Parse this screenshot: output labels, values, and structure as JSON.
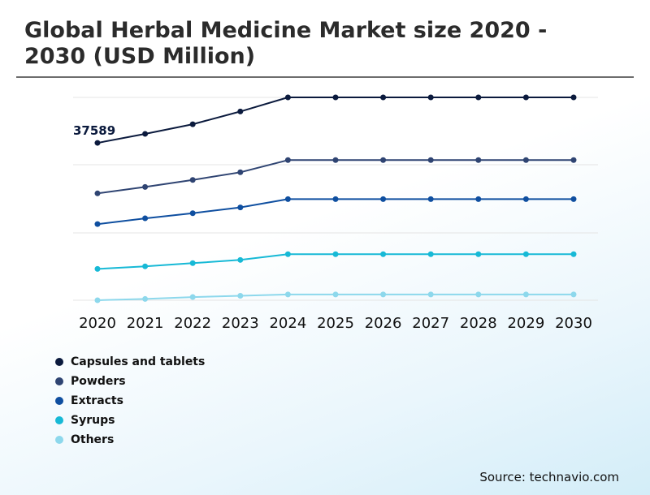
{
  "title": "Global Herbal Medicine Market size 2020 - 2030 (USD Million)",
  "source": "Source: technavio.com",
  "chart_data": {
    "type": "line",
    "x": [
      "2020",
      "2021",
      "2022",
      "2023",
      "2024",
      "2025",
      "2026",
      "2027",
      "2028",
      "2029",
      "2030"
    ],
    "series": [
      {
        "name": "Capsules and tablets",
        "color": "#0b1a3d",
        "values": [
          37589,
          39000,
          40500,
          42500,
          44700,
          44700,
          44700,
          44700,
          44700,
          44700,
          44700
        ]
      },
      {
        "name": "Powders",
        "color": "#2f4472",
        "values": [
          29700,
          30700,
          31800,
          33000,
          34900,
          34900,
          34900,
          34900,
          34900,
          34900,
          34900
        ]
      },
      {
        "name": "Extracts",
        "color": "#0f4fa0",
        "values": [
          24900,
          25800,
          26600,
          27500,
          28800,
          28800,
          28800,
          28800,
          28800,
          28800,
          28800
        ]
      },
      {
        "name": "Syrups",
        "color": "#17b9d6",
        "values": [
          17900,
          18300,
          18800,
          19300,
          20200,
          20200,
          20200,
          20200,
          20200,
          20200,
          20200
        ]
      },
      {
        "name": "Others",
        "color": "#8dd8ec",
        "values": [
          13000,
          13200,
          13500,
          13700,
          13900,
          13900,
          13900,
          13900,
          13900,
          13900,
          13900
        ]
      }
    ],
    "annotations": [
      {
        "series": 0,
        "index": 0,
        "text": "37589"
      }
    ],
    "ylim": [
      13000,
      44700
    ],
    "grid": true,
    "legend": "bottom-left"
  }
}
